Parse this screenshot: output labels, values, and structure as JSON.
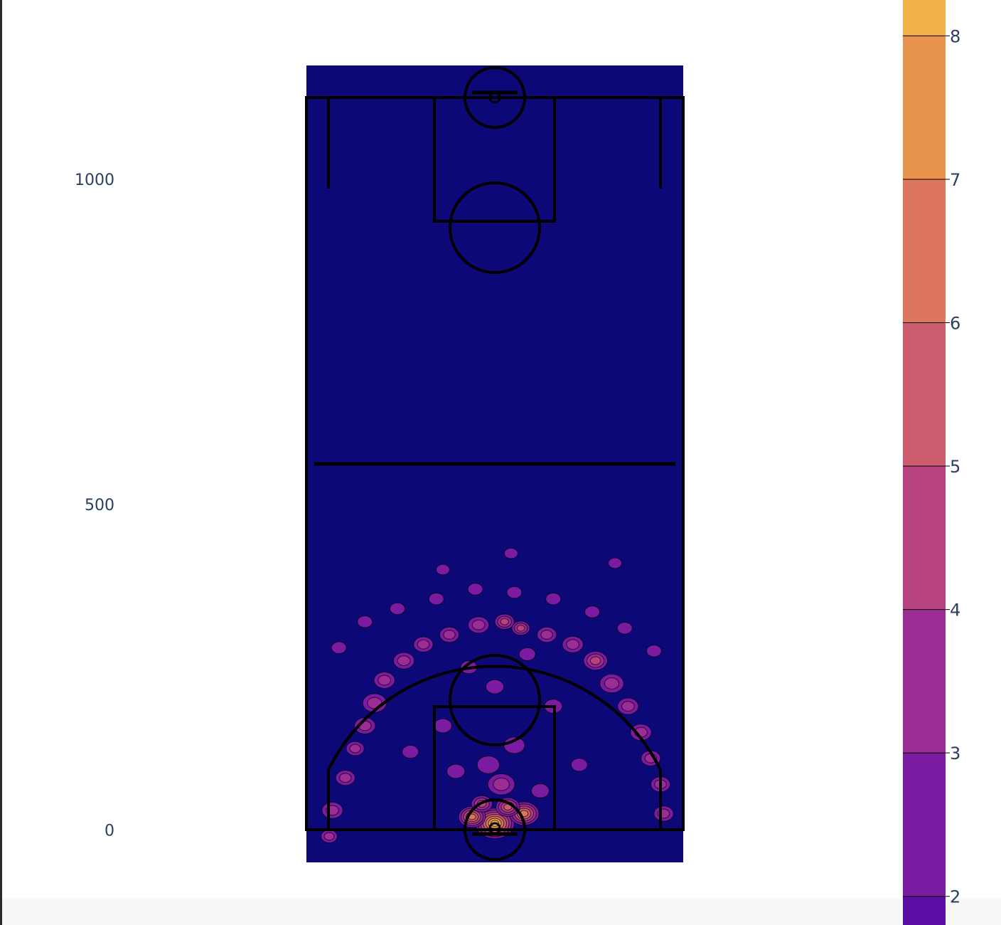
{
  "chart_data": {
    "type": "heatmap",
    "subtype": "2d-density-contour",
    "title": "",
    "xlabel": "",
    "ylabel": "",
    "x_range": [
      -290,
      290
    ],
    "y_range": [
      -50,
      1175
    ],
    "ylim": [
      -50,
      1175
    ],
    "y_ticks": [
      {
        "value": 0,
        "label": "0"
      },
      {
        "value": 500,
        "label": "500"
      },
      {
        "value": 1000,
        "label": "1000"
      }
    ],
    "colorbar": {
      "range": [
        1.8,
        8.25
      ],
      "ticks": [
        {
          "value": 2,
          "label": "2"
        },
        {
          "value": 3,
          "label": "3"
        },
        {
          "value": 4,
          "label": "4"
        },
        {
          "value": 5,
          "label": "5"
        },
        {
          "value": 6,
          "label": "6"
        },
        {
          "value": 7,
          "label": "7"
        },
        {
          "value": 8,
          "label": "8"
        }
      ],
      "bands": [
        {
          "from": 1.8,
          "to": 2,
          "color": "#5b0ea4"
        },
        {
          "from": 2,
          "to": 3,
          "color": "#7a1ba2"
        },
        {
          "from": 3,
          "to": 4,
          "color": "#9b2d94"
        },
        {
          "from": 4,
          "to": 5,
          "color": "#b6437f"
        },
        {
          "from": 5,
          "to": 6,
          "color": "#cb5c6d"
        },
        {
          "from": 6,
          "to": 7,
          "color": "#dc775e"
        },
        {
          "from": 7,
          "to": 8,
          "color": "#e8944f"
        },
        {
          "from": 8,
          "to": 8.25,
          "color": "#f3b24a"
        }
      ]
    },
    "background_color": "#0d0878",
    "density_spots": [
      {
        "x": 0,
        "y": 10,
        "r": 26,
        "level": 8.5
      },
      {
        "x": -35,
        "y": 20,
        "r": 18,
        "level": 6
      },
      {
        "x": 45,
        "y": 25,
        "r": 20,
        "level": 6.5
      },
      {
        "x": 20,
        "y": 35,
        "r": 16,
        "level": 5
      },
      {
        "x": -20,
        "y": 40,
        "r": 14,
        "level": 4
      },
      {
        "x": 10,
        "y": 70,
        "r": 18,
        "level": 3
      },
      {
        "x": -10,
        "y": 100,
        "r": 15,
        "level": 2.5
      },
      {
        "x": 30,
        "y": 130,
        "r": 14,
        "level": 2.5
      },
      {
        "x": -60,
        "y": 90,
        "r": 12,
        "level": 2.5
      },
      {
        "x": 70,
        "y": 60,
        "r": 12,
        "level": 2.5
      },
      {
        "x": -80,
        "y": 160,
        "r": 12,
        "level": 2.5
      },
      {
        "x": 90,
        "y": 190,
        "r": 12,
        "level": 2.5
      },
      {
        "x": -130,
        "y": 120,
        "r": 11,
        "level": 2.5
      },
      {
        "x": 130,
        "y": 100,
        "r": 11,
        "level": 2.5
      },
      {
        "x": 0,
        "y": 220,
        "r": 12,
        "level": 2.5
      },
      {
        "x": -40,
        "y": 250,
        "r": 11,
        "level": 2.5
      },
      {
        "x": 50,
        "y": 270,
        "r": 11,
        "level": 2.5
      },
      {
        "x": -170,
        "y": 230,
        "r": 14,
        "level": 3
      },
      {
        "x": -185,
        "y": 195,
        "r": 16,
        "level": 3.5
      },
      {
        "x": -200,
        "y": 160,
        "r": 14,
        "level": 3
      },
      {
        "x": -215,
        "y": 125,
        "r": 12,
        "level": 3
      },
      {
        "x": -230,
        "y": 80,
        "r": 13,
        "level": 3
      },
      {
        "x": -250,
        "y": 30,
        "r": 14,
        "level": 3
      },
      {
        "x": -255,
        "y": -10,
        "r": 11,
        "level": 3
      },
      {
        "x": -140,
        "y": 260,
        "r": 14,
        "level": 3.5
      },
      {
        "x": -110,
        "y": 285,
        "r": 13,
        "level": 3
      },
      {
        "x": -70,
        "y": 300,
        "r": 13,
        "level": 3
      },
      {
        "x": -25,
        "y": 315,
        "r": 14,
        "level": 3.5
      },
      {
        "x": 15,
        "y": 320,
        "r": 13,
        "level": 4
      },
      {
        "x": 40,
        "y": 310,
        "r": 12,
        "level": 4
      },
      {
        "x": 80,
        "y": 300,
        "r": 13,
        "level": 3
      },
      {
        "x": 120,
        "y": 285,
        "r": 14,
        "level": 3.5
      },
      {
        "x": 155,
        "y": 260,
        "r": 16,
        "level": 4
      },
      {
        "x": 180,
        "y": 225,
        "r": 16,
        "level": 3.5
      },
      {
        "x": 205,
        "y": 190,
        "r": 14,
        "level": 3
      },
      {
        "x": 225,
        "y": 150,
        "r": 14,
        "level": 3
      },
      {
        "x": 240,
        "y": 110,
        "r": 13,
        "level": 3
      },
      {
        "x": 255,
        "y": 70,
        "r": 13,
        "level": 3
      },
      {
        "x": 260,
        "y": 25,
        "r": 13,
        "level": 3
      },
      {
        "x": -240,
        "y": 280,
        "r": 10,
        "level": 2.5
      },
      {
        "x": -200,
        "y": 320,
        "r": 10,
        "level": 2.5
      },
      {
        "x": -150,
        "y": 340,
        "r": 10,
        "level": 2.5
      },
      {
        "x": -90,
        "y": 355,
        "r": 10,
        "level": 2.5
      },
      {
        "x": -30,
        "y": 370,
        "r": 10,
        "level": 2.5
      },
      {
        "x": 30,
        "y": 365,
        "r": 10,
        "level": 2.5
      },
      {
        "x": 90,
        "y": 355,
        "r": 10,
        "level": 2.5
      },
      {
        "x": 150,
        "y": 335,
        "r": 10,
        "level": 2.5
      },
      {
        "x": 200,
        "y": 310,
        "r": 10,
        "level": 2.5
      },
      {
        "x": 245,
        "y": 275,
        "r": 10,
        "level": 2.5
      },
      {
        "x": 185,
        "y": 410,
        "r": 9,
        "level": 2.5
      },
      {
        "x": 25,
        "y": 425,
        "r": 9,
        "level": 2.5
      },
      {
        "x": -80,
        "y": 400,
        "r": 9,
        "level": 2.5
      }
    ]
  }
}
